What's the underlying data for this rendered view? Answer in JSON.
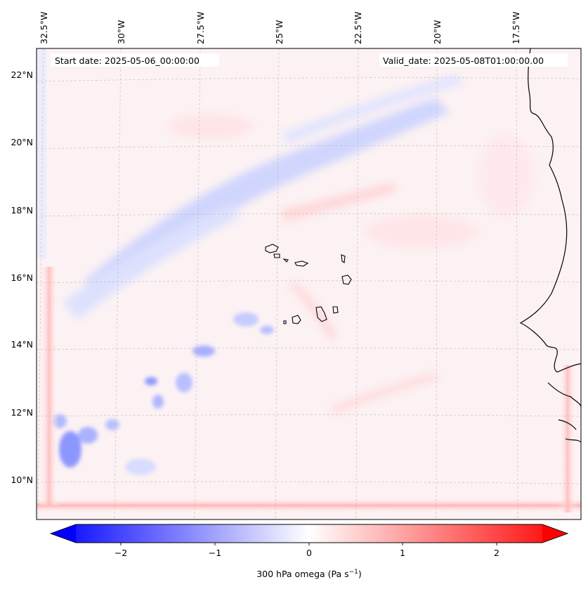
{
  "map": {
    "start_date": "Start date: 2025-05-06_00:00:00",
    "valid_date": "Valid_date: 2025-05-08T01:00:00.00",
    "lon_labels": [
      "32.5°W",
      "30°W",
      "27.5°W",
      "25°W",
      "22.5°W",
      "20°W",
      "17.5°W"
    ],
    "lat_labels": [
      "22°N",
      "20°N",
      "18°N",
      "16°N",
      "14°N",
      "12°N",
      "10°N"
    ]
  },
  "colorbar": {
    "ticks": [
      "−2",
      "−1",
      "0",
      "1",
      "2"
    ],
    "label": "300 hPa omega (Pa s",
    "label_sup": "−1",
    "label_end": ")",
    "neg_color": "#0000ff",
    "zero_color": "#ffffff",
    "pos_color": "#ff0000"
  }
}
